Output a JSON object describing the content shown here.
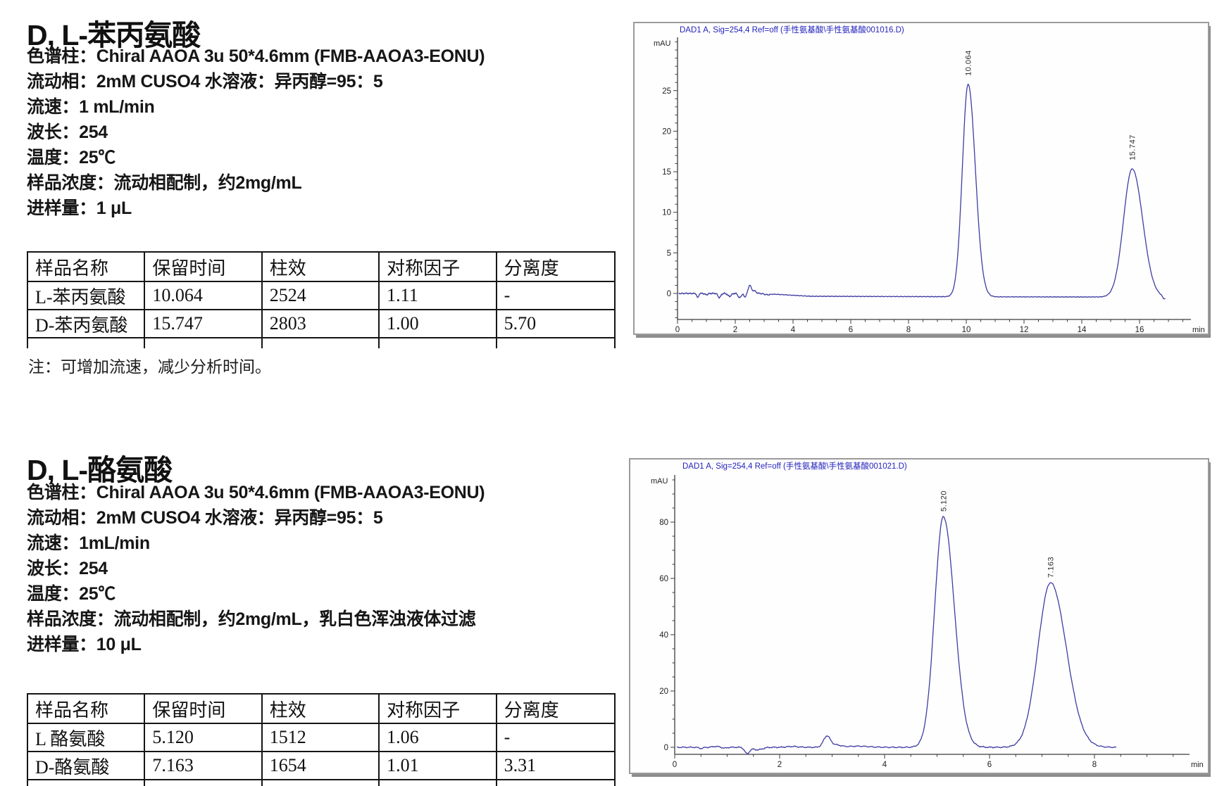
{
  "sections": [
    {
      "title": "D, L-苯丙氨酸",
      "conditions": [
        "色谱柱：Chiral AAOA 3u 50*4.6mm (FMB-AAOA3-EONU)",
        "流动相：2mM CUSO4 水溶液：异丙醇=95：5",
        "流速：1 mL/min",
        "波长：254",
        "温度：25℃",
        "样品浓度：流动相配制，约2mg/mL",
        "进样量：1 μL"
      ],
      "table": {
        "headers": [
          "样品名称",
          "保留时间",
          "柱效",
          "对称因子",
          "分离度"
        ],
        "rows": [
          [
            "L-苯丙氨酸",
            "10.064",
            "2524",
            "1.11",
            "-"
          ],
          [
            "D-苯丙氨酸",
            "15.747",
            "2803",
            "1.00",
            "5.70"
          ]
        ]
      },
      "note": "注：可增加流速，减少分析时间。"
    },
    {
      "title": "D, L-酪氨酸",
      "conditions": [
        "色谱柱：Chiral AAOA 3u 50*4.6mm (FMB-AAOA3-EONU)",
        "流动相：2mM CUSO4 水溶液：异丙醇=95：5",
        "流速：1mL/min",
        "波长：254",
        "温度：25℃",
        "样品浓度：流动相配制，约2mg/mL，乳白色浑浊液体过滤",
        "进样量：10 μL"
      ],
      "table": {
        "headers": [
          "样品名称",
          "保留时间",
          "柱效",
          "对称因子",
          "分离度"
        ],
        "rows": [
          [
            "L 酪氨酸",
            "5.120",
            "1512",
            "1.06",
            "-"
          ],
          [
            "D-酪氨酸",
            "7.163",
            "1654",
            "1.01",
            "3.31"
          ]
        ]
      }
    }
  ],
  "chart_data": [
    {
      "type": "line",
      "title": "DAD1 A, Sig=254,4 Ref=off (手性氨基酸\\手性氨基酸001016.D)",
      "ylabel": "mAU",
      "xlabel": "min",
      "x_ticks": [
        0,
        2,
        4,
        6,
        8,
        10,
        12,
        14,
        16
      ],
      "y_ticks": [
        0,
        5,
        10,
        15,
        20,
        25
      ],
      "xlim": [
        0,
        17.6
      ],
      "ylim": [
        -3.2,
        31.5
      ],
      "legend": "none",
      "grid": false,
      "line_color": "#3d3da2",
      "title_color": "#2323bb",
      "noise_amp": 0.09,
      "noise_taper": [
        3.2,
        0.5
      ],
      "trace_end": 16.9,
      "peaks": [
        {
          "rt": 10.064,
          "height": 26.2,
          "label": "10.064",
          "sigma_l": 0.2,
          "sigma_r": 0.25
        },
        {
          "rt": 15.747,
          "height": 15.8,
          "label": "15.747",
          "sigma_l": 0.3,
          "sigma_r": 0.36
        }
      ],
      "artifacts": [
        [
          0.7,
          -0.55,
          0.03
        ],
        [
          1.0,
          -0.15,
          0.05
        ],
        [
          1.45,
          -0.5,
          0.05
        ],
        [
          1.8,
          -0.35,
          0.06
        ],
        [
          2.15,
          -0.55,
          0.05
        ],
        [
          2.33,
          -0.45,
          0.035
        ],
        [
          2.5,
          1.0,
          0.045
        ],
        [
          2.64,
          0.35,
          0.07
        ],
        [
          3.1,
          -0.12,
          0.1
        ],
        [
          16.85,
          -0.35,
          0.05
        ]
      ],
      "baseline": [
        [
          0,
          0
        ],
        [
          2.9,
          0
        ],
        [
          4.6,
          -0.35
        ],
        [
          11,
          -0.42
        ],
        [
          16.9,
          -0.45
        ]
      ]
    },
    {
      "type": "line",
      "title": "DAD1 A, Sig=254,4 Ref=off (手性氨基酸\\手性氨基酸001021.D)",
      "ylabel": "mAU",
      "xlabel": "min",
      "x_ticks": [
        0,
        2,
        4,
        6,
        8
      ],
      "y_ticks": [
        0,
        20,
        40,
        60,
        80
      ],
      "xlim": [
        0,
        9.9
      ],
      "ylim": [
        -2.5,
        96
      ],
      "legend": "none",
      "grid": false,
      "line_color": "#3d3da2",
      "title_color": "#2323bb",
      "noise_amp": 0.25,
      "trace_end": 8.42,
      "peaks": [
        {
          "rt": 5.12,
          "height": 82,
          "label": "5.120",
          "sigma_l": 0.165,
          "sigma_r": 0.21
        },
        {
          "rt": 7.163,
          "height": 58.5,
          "label": "7.163",
          "sigma_l": 0.24,
          "sigma_r": 0.3
        }
      ],
      "artifacts": [
        [
          0.5,
          -0.4,
          0.04
        ],
        [
          0.78,
          0.3,
          0.06
        ],
        [
          0.95,
          -0.3,
          0.04
        ],
        [
          1.38,
          -2.2,
          0.045
        ],
        [
          1.58,
          -0.9,
          0.09
        ],
        [
          2.25,
          0.3,
          0.1
        ],
        [
          2.9,
          3.9,
          0.065
        ],
        [
          3.07,
          0.8,
          0.1
        ],
        [
          3.5,
          0.4,
          0.2
        ]
      ],
      "baseline": [
        [
          0,
          0
        ],
        [
          8.42,
          0
        ]
      ]
    }
  ]
}
